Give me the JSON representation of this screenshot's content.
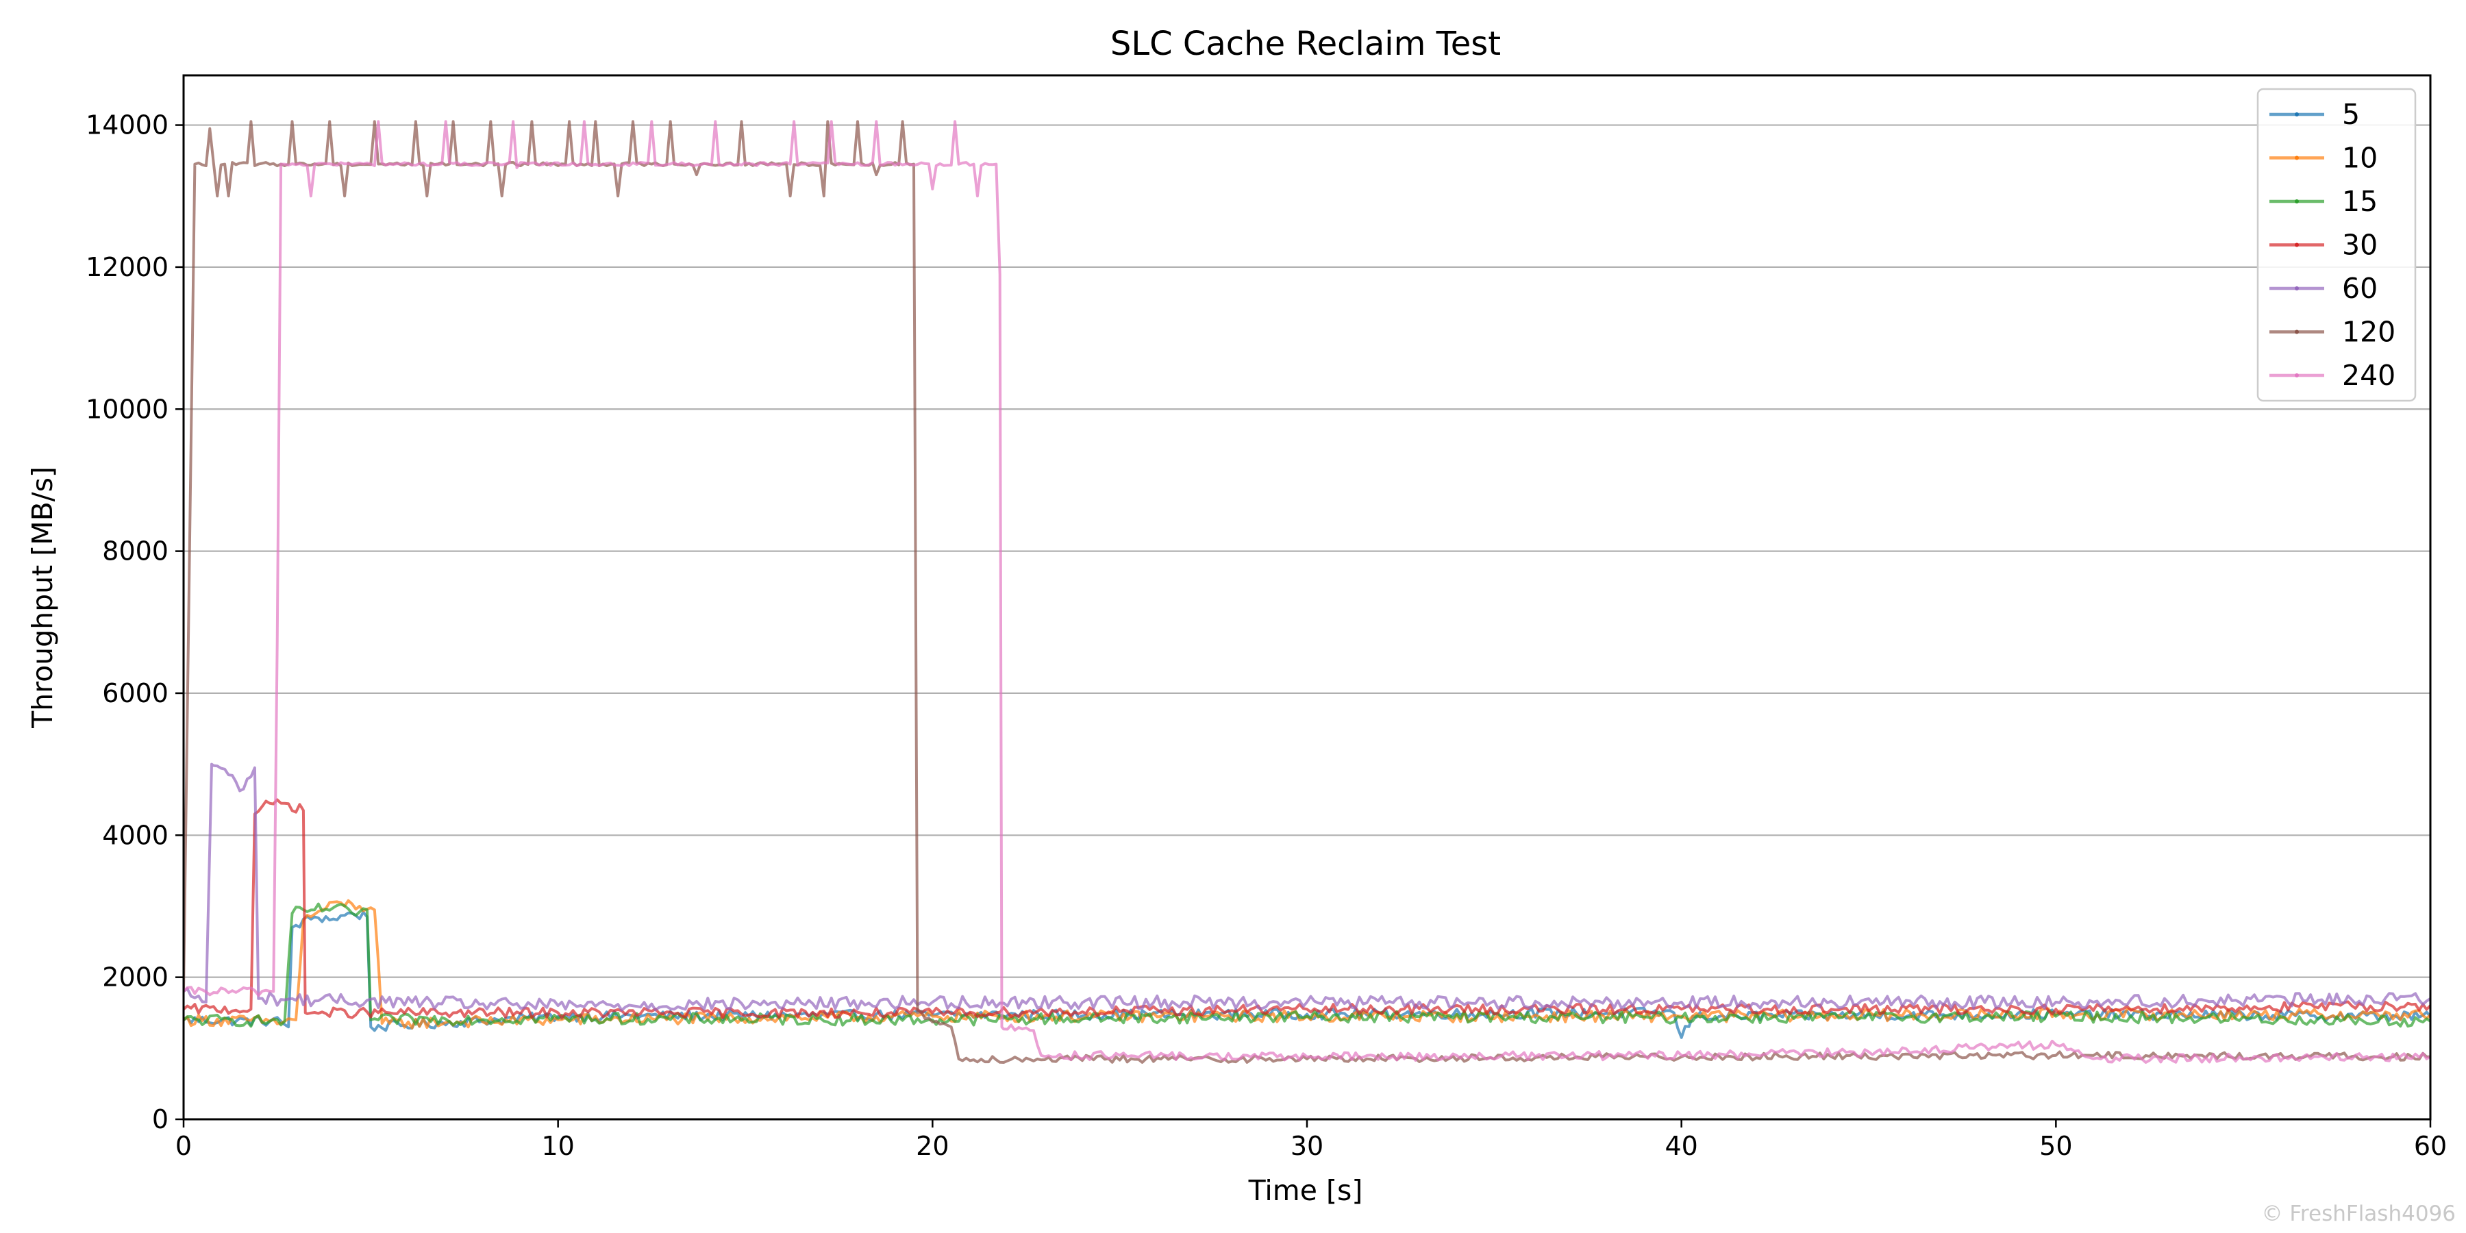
{
  "chart_data": {
    "type": "line",
    "title": "SLC Cache Reclaim Test",
    "xlabel": "Time [s]",
    "ylabel": "Throughput [MB/s]",
    "xlim": [
      0,
      60
    ],
    "ylim": [
      0,
      14700
    ],
    "x_ticks": [
      0,
      10,
      20,
      30,
      40,
      50,
      60
    ],
    "y_ticks": [
      0,
      2000,
      4000,
      6000,
      8000,
      10000,
      12000,
      14000
    ],
    "grid": "horizontal",
    "legend_position": "top-right",
    "watermark": "© FreshFlash4096",
    "series": [
      {
        "name": "5",
        "color": "#1f77b4",
        "points": [
          [
            0,
            1400
          ],
          [
            2.6,
            1380
          ],
          [
            2.8,
            1300
          ],
          [
            2.9,
            2700
          ],
          [
            3.5,
            2850
          ],
          [
            4.0,
            2820
          ],
          [
            4.5,
            2900
          ],
          [
            4.9,
            2850
          ],
          [
            5.0,
            1300
          ],
          [
            10,
            1450
          ],
          [
            20,
            1470
          ],
          [
            30,
            1480
          ],
          [
            39.8,
            1500
          ],
          [
            40,
            1150
          ],
          [
            40.3,
            1450
          ],
          [
            50,
            1480
          ],
          [
            60,
            1450
          ]
        ],
        "noise": 70
      },
      {
        "name": "10",
        "color": "#ff7f0e",
        "points": [
          [
            0,
            1400
          ],
          [
            2.7,
            1380
          ],
          [
            3.0,
            1400
          ],
          [
            3.2,
            2800
          ],
          [
            3.7,
            2950
          ],
          [
            4.2,
            3050
          ],
          [
            4.7,
            3000
          ],
          [
            5.1,
            2950
          ],
          [
            5.3,
            1350
          ],
          [
            10,
            1400
          ],
          [
            20,
            1450
          ],
          [
            30,
            1450
          ],
          [
            40,
            1450
          ],
          [
            50,
            1480
          ],
          [
            60,
            1470
          ]
        ],
        "noise": 80
      },
      {
        "name": "15",
        "color": "#2ca02c",
        "points": [
          [
            0,
            1400
          ],
          [
            2.7,
            1380
          ],
          [
            2.9,
            2900
          ],
          [
            3.5,
            2950
          ],
          [
            4.0,
            2980
          ],
          [
            4.5,
            2900
          ],
          [
            4.9,
            2950
          ],
          [
            5.0,
            1400
          ],
          [
            10,
            1420
          ],
          [
            20,
            1400
          ],
          [
            30,
            1450
          ],
          [
            40,
            1430
          ],
          [
            50,
            1450
          ],
          [
            60,
            1380
          ]
        ],
        "noise": 80
      },
      {
        "name": "30",
        "color": "#d62728",
        "points": [
          [
            0,
            1550
          ],
          [
            1.8,
            1550
          ],
          [
            1.9,
            4300
          ],
          [
            2.3,
            4450
          ],
          [
            2.7,
            4450
          ],
          [
            3.2,
            4350
          ],
          [
            3.25,
            1500
          ],
          [
            10,
            1500
          ],
          [
            20,
            1500
          ],
          [
            30,
            1550
          ],
          [
            40,
            1550
          ],
          [
            50,
            1550
          ],
          [
            60,
            1600
          ]
        ],
        "noise": 70
      },
      {
        "name": "60",
        "color": "#9467bd",
        "points": [
          [
            0,
            1800
          ],
          [
            0.6,
            1650
          ],
          [
            0.75,
            5000
          ],
          [
            1.2,
            4850
          ],
          [
            1.6,
            4650
          ],
          [
            1.9,
            4950
          ],
          [
            2.0,
            1700
          ],
          [
            10,
            1600
          ],
          [
            20,
            1650
          ],
          [
            30,
            1650
          ],
          [
            40,
            1650
          ],
          [
            50,
            1650
          ],
          [
            60,
            1700
          ]
        ],
        "noise": 90
      },
      {
        "name": "120",
        "color": "#8c564b",
        "points": [
          [
            0,
            1800
          ],
          [
            0.3,
            13450
          ],
          [
            19.5,
            13450
          ],
          [
            19.6,
            1500
          ],
          [
            20.5,
            1300
          ],
          [
            20.7,
            850
          ],
          [
            30,
            850
          ],
          [
            40,
            880
          ],
          [
            50,
            900
          ],
          [
            60,
            880
          ]
        ],
        "noise": 50,
        "high_band": [
          0.3,
          19.5
        ],
        "spikes": [
          [
            0.7,
            13950
          ],
          [
            0.9,
            13000
          ],
          [
            1.2,
            13000
          ],
          [
            1.8,
            14050
          ],
          [
            2.9,
            14050
          ],
          [
            3.9,
            14050
          ],
          [
            4.3,
            13000
          ],
          [
            5.1,
            14050
          ],
          [
            6.2,
            14050
          ],
          [
            6.5,
            13000
          ],
          [
            7.2,
            14050
          ],
          [
            8.2,
            14050
          ],
          [
            8.5,
            13000
          ],
          [
            9.3,
            14050
          ],
          [
            10.3,
            14050
          ],
          [
            11.0,
            14050
          ],
          [
            11.6,
            13000
          ],
          [
            12.0,
            14050
          ],
          [
            13.0,
            14050
          ],
          [
            13.7,
            13300
          ],
          [
            14.9,
            14050
          ],
          [
            16.2,
            13000
          ],
          [
            17.2,
            14050
          ],
          [
            17.1,
            13000
          ],
          [
            18.0,
            14050
          ],
          [
            18.5,
            13300
          ],
          [
            19.2,
            14050
          ]
        ]
      },
      {
        "name": "240",
        "color": "#e377c2",
        "points": [
          [
            0,
            1800
          ],
          [
            2.4,
            1800
          ],
          [
            2.5,
            6700
          ],
          [
            2.6,
            13450
          ],
          [
            21.7,
            13450
          ],
          [
            21.8,
            11900
          ],
          [
            21.85,
            1300
          ],
          [
            22.7,
            1250
          ],
          [
            22.9,
            900
          ],
          [
            30,
            880
          ],
          [
            40,
            900
          ],
          [
            45,
            950
          ],
          [
            50,
            1050
          ],
          [
            51.2,
            850
          ],
          [
            60,
            880
          ]
        ],
        "noise": 60,
        "high_band": [
          2.6,
          21.7
        ],
        "spikes": [
          [
            3.4,
            13000
          ],
          [
            5.2,
            14050
          ],
          [
            7.0,
            14050
          ],
          [
            8.8,
            14050
          ],
          [
            8.9,
            13400
          ],
          [
            10.7,
            14050
          ],
          [
            12.5,
            14050
          ],
          [
            14.2,
            14050
          ],
          [
            16.3,
            14050
          ],
          [
            17.3,
            14050
          ],
          [
            18.5,
            14050
          ],
          [
            20.0,
            13100
          ],
          [
            20.6,
            14050
          ],
          [
            21.2,
            13000
          ]
        ]
      }
    ]
  }
}
